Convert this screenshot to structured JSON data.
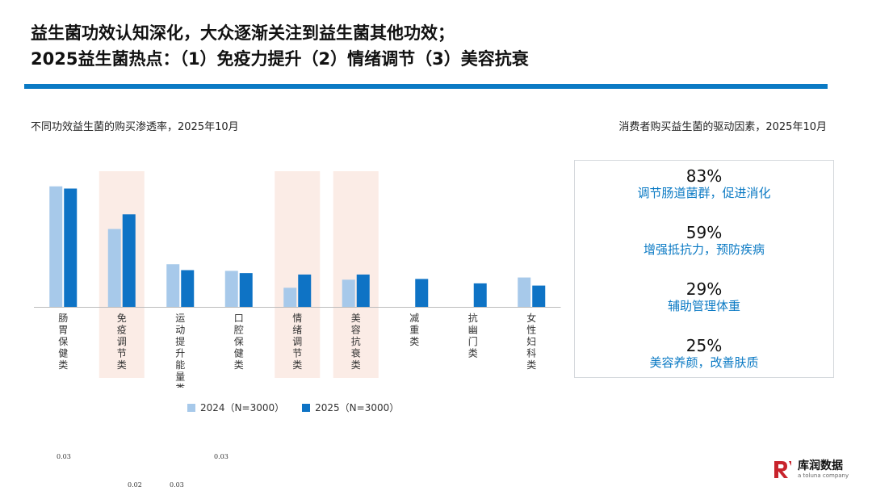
{
  "header": {
    "title_line1": "益生菌功效认知深化，大众逐渐关注到益生菌其他功效；",
    "title_line2": "2025益生菌热点：（1）免疫力提升（2）情绪调节（3）美容抗衰"
  },
  "left_panel": {
    "subtitle": "不同功效益生菌的购买渗透率，2025年10月"
  },
  "right_panel": {
    "subtitle": "消费者购买益生菌的驱动因素，2025年10月"
  },
  "colors": {
    "s2024": "#a7c9ea",
    "s2025": "#0e73c5",
    "highlight": "#fbece6",
    "accent": "#0b7ac4",
    "brand_red": "#c8232c"
  },
  "chart_data": {
    "type": "bar",
    "title": "",
    "xlabel": "",
    "ylabel": "",
    "ylim": [
      0,
      100
    ],
    "grid": false,
    "legend_position": "bottom",
    "categories": [
      "肠胃保健类",
      "免疫调节类",
      "运动提升能量类",
      "口腔保健类",
      "情绪调节类",
      "美容抗衰类",
      "减重类",
      "抗幽门类",
      "女性妇科类"
    ],
    "highlighted": [
      "免疫调节类",
      "情绪调节类",
      "美容抗衰类"
    ],
    "series": [
      {
        "name": "2024（N=3000）",
        "values": [
          82,
          53,
          29,
          24.5,
          13,
          18.5,
          null,
          null,
          20
        ]
      },
      {
        "name": "2025（N=3000）",
        "values": [
          80.5,
          63,
          25,
          23,
          22,
          22,
          19,
          16,
          14.5
        ]
      }
    ]
  },
  "drivers": [
    {
      "pct": "83%",
      "label": "调节肠道菌群，促进消化"
    },
    {
      "pct": "59%",
      "label": "增强抵抗力，预防疾病"
    },
    {
      "pct": "29%",
      "label": "辅助管理体重"
    },
    {
      "pct": "25%",
      "label": "美容养颜，改善肤质"
    }
  ],
  "notes": [
    "0.03",
    "0.03",
    "0.02",
    "0.03"
  ],
  "logo": {
    "name": "库润数据",
    "sub": "a toluna company"
  }
}
